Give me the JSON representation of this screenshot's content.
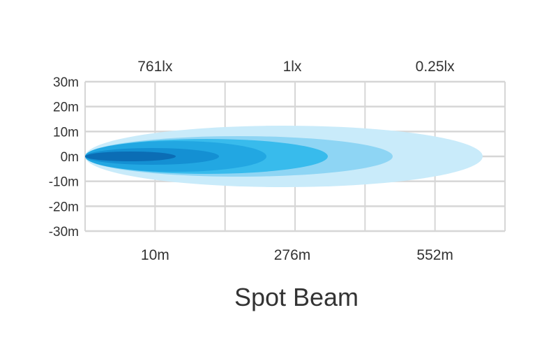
{
  "chart_data": {
    "type": "area",
    "title": "Spot Beam",
    "y_ticks": [
      "30m",
      "20m",
      "10m",
      "0m",
      "-10m",
      "-20m",
      "-30m"
    ],
    "ylim": [
      -30,
      30
    ],
    "top_labels": [
      "761lx",
      "1lx",
      "0.25lx"
    ],
    "bottom_labels": [
      "10m",
      "276m",
      "552m"
    ],
    "grid": true,
    "zone_colors": [
      "#c9ebfa",
      "#8ed5f4",
      "#38bbec",
      "#22a7e2",
      "#1490d3",
      "#0b6db5"
    ]
  }
}
